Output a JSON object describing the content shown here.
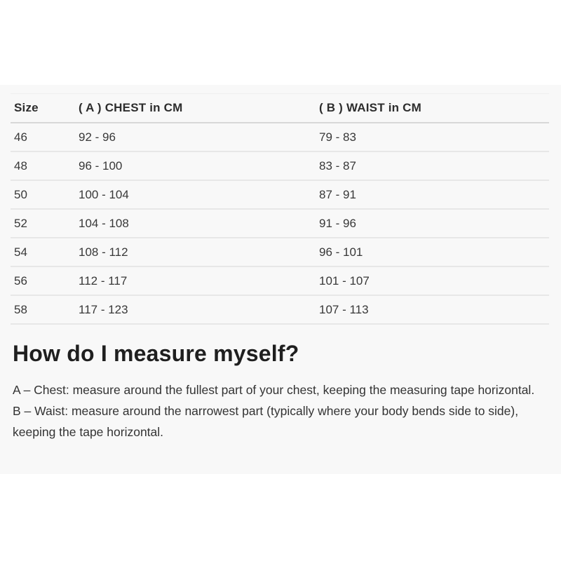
{
  "table": {
    "headers": [
      "Size",
      "( A ) CHEST in CM",
      "( B ) WAIST in CM"
    ],
    "rows": [
      [
        "46",
        "92 - 96",
        "79 - 83"
      ],
      [
        "48",
        "96 - 100",
        "83 - 87"
      ],
      [
        "50",
        "100 - 104",
        "87 - 91"
      ],
      [
        "52",
        "104 - 108",
        "91 - 96"
      ],
      [
        "54",
        "108 - 112",
        "96 - 101"
      ],
      [
        "56",
        "112 - 117",
        "101 - 107"
      ],
      [
        "58",
        "117 - 123",
        "107 - 113"
      ]
    ]
  },
  "section": {
    "heading": "How do I measure myself?",
    "paragraphs": [
      "A – Chest: measure around the fullest part of your chest, keeping the measuring tape horizontal.",
      "B – Waist: measure around the narrowest part (typically where your body bends side to side), keeping the tape horizontal."
    ]
  },
  "colors": {
    "band_background": "#f8f8f8",
    "header_border": "#d8d8d8",
    "row_border": "#e7e7e7",
    "heading_text": "#1f1f1f",
    "body_text": "#333333"
  }
}
